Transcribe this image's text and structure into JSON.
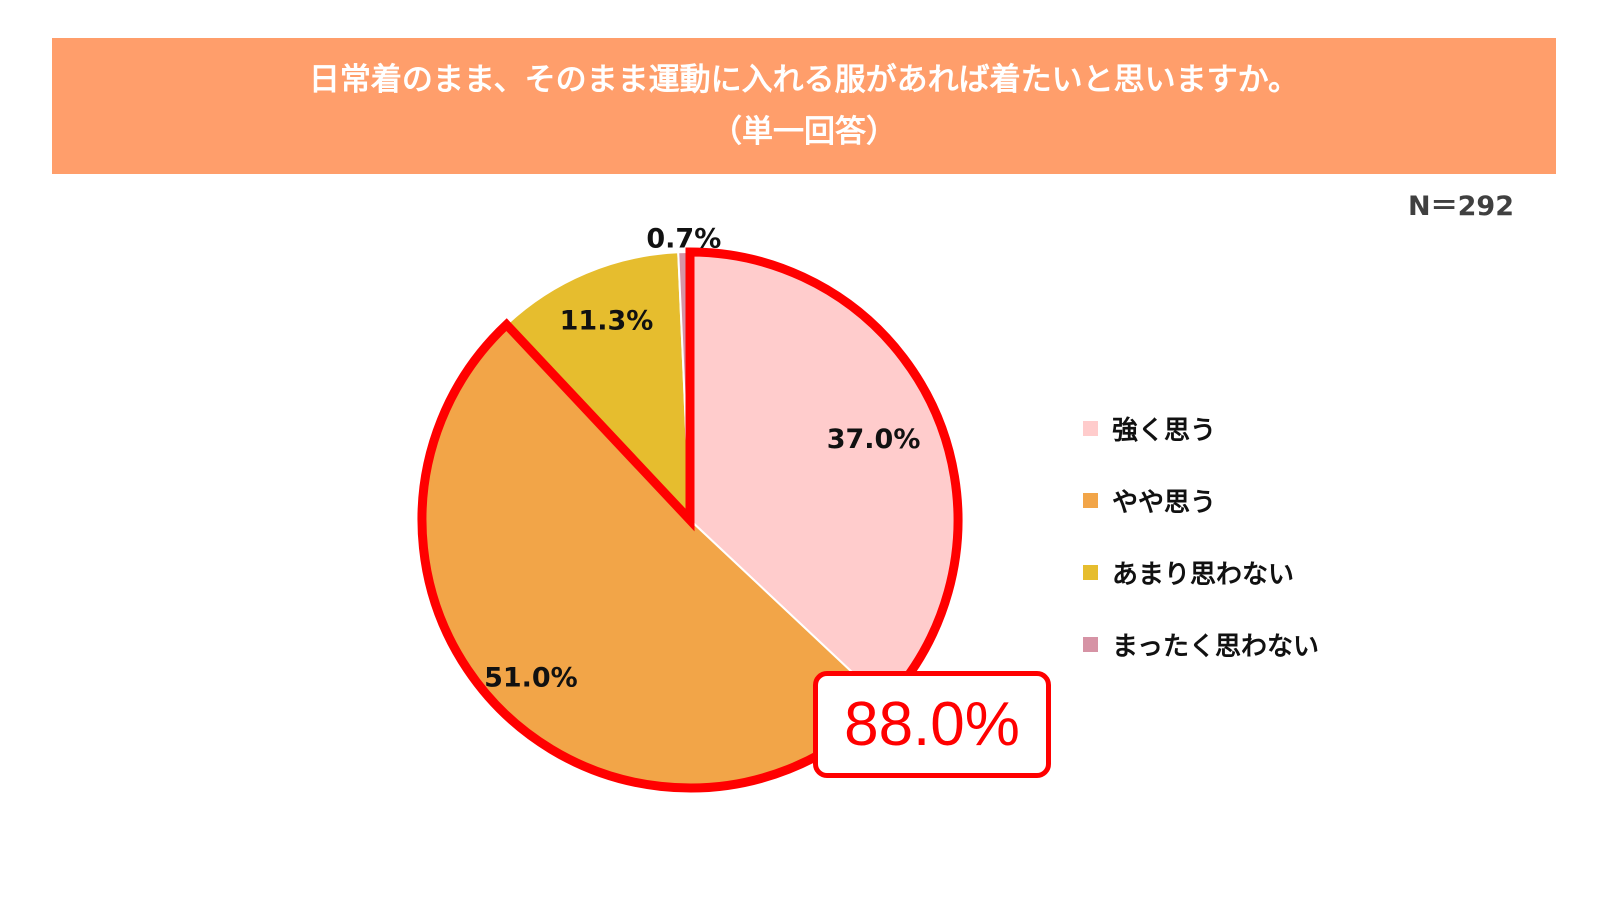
{
  "title": {
    "line1": "日常着のまま、そのまま運動に入れる服があれば着たいと思いますか。",
    "line2": "（単一回答）"
  },
  "sample_size": "N＝292",
  "callout": {
    "text": "88.0%",
    "color": "#ff0000"
  },
  "chart_data": {
    "type": "pie",
    "start_angle": "12 o'clock",
    "direction": "clockwise",
    "slices": [
      {
        "name": "強く思う",
        "value": 37.0,
        "label": "37.0%",
        "color": "#ffcccc"
      },
      {
        "name": "やや思う",
        "value": 51.0,
        "label": "51.0%",
        "color": "#f2a548"
      },
      {
        "name": "あまり思わない",
        "value": 11.3,
        "label": "11.3%",
        "color": "#e6bd2e"
      },
      {
        "name": "まったく思わない",
        "value": 0.7,
        "label": "0.7%",
        "color": "#d693a5"
      }
    ],
    "highlight": {
      "slices": [
        0,
        1
      ],
      "total_label": "88.0%",
      "outline_color": "#ff0000"
    },
    "legend_position": "right"
  }
}
